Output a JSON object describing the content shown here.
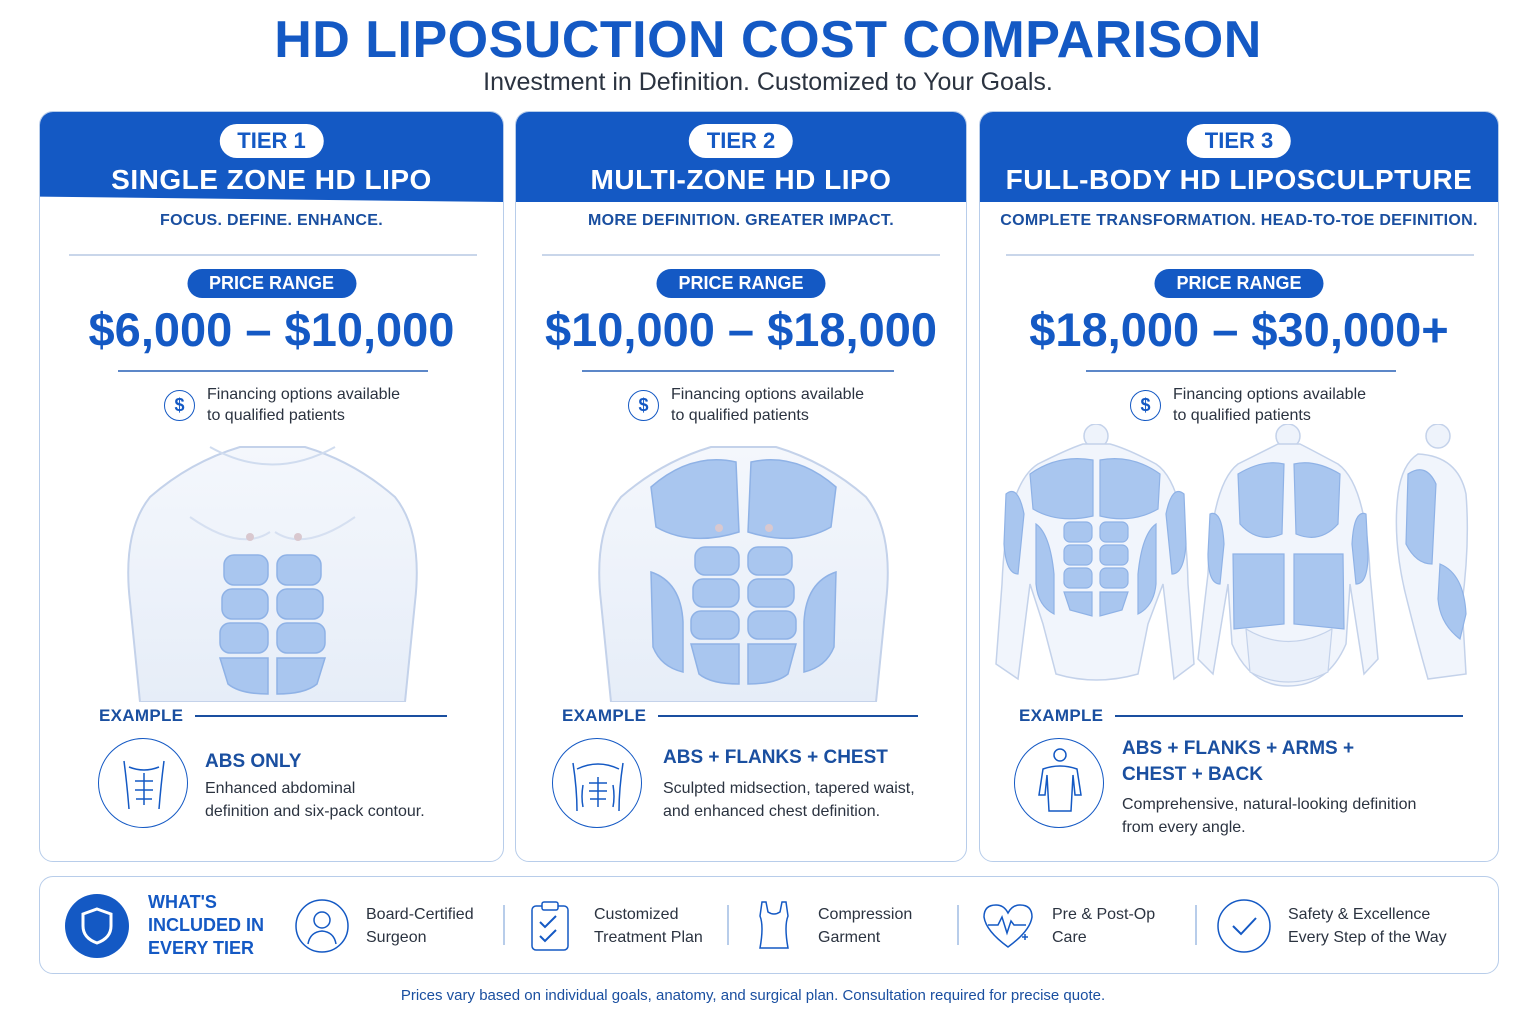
{
  "title": "HD LIPOSUCTION COST COMPARISON",
  "subtitle": "Investment in Definition. Customized to Your Goals.",
  "tiers": [
    {
      "tier": "TIER 1",
      "name": "SINGLE ZONE HD LIPO",
      "tagline": "FOCUS. DEFINE. ENHANCE.",
      "price_label": "PRICE RANGE",
      "price": "$6,000 – $10,000",
      "financing_1": "Financing options available",
      "financing_2": "to qualified patients",
      "example_label": "EXAMPLE",
      "example_title": "ABS ONLY",
      "example_desc_1": "Enhanced abdominal",
      "example_desc_2": "definition and six-pack contour.",
      "figure": "front-torso-abs-highlighted"
    },
    {
      "tier": "TIER 2",
      "name": "MULTI-ZONE HD LIPO",
      "tagline": "MORE DEFINITION. GREATER IMPACT.",
      "price_label": "PRICE RANGE",
      "price": "$10,000 – $18,000",
      "financing_1": "Financing options available",
      "financing_2": "to qualified patients",
      "example_label": "EXAMPLE",
      "example_title": "ABS + FLANKS + CHEST",
      "example_desc_1": "Sculpted midsection, tapered waist,",
      "example_desc_2": "and enhanced chest definition.",
      "figure": "front-torso-abs-flanks-chest-highlighted"
    },
    {
      "tier": "TIER 3",
      "name": "FULL-BODY HD LIPOSCULPTURE",
      "tagline": "COMPLETE TRANSFORMATION. HEAD-TO-TOE DEFINITION.",
      "price_label": "PRICE RANGE",
      "price": "$18,000 – $30,000+",
      "financing_1": "Financing options available",
      "financing_2": "to qualified patients",
      "example_label": "EXAMPLE",
      "example_title_1": "ABS + FLANKS + ARMS +",
      "example_title_2": "CHEST + BACK",
      "example_desc_1": "Comprehensive, natural-looking definition",
      "example_desc_2": "from every angle.",
      "figure": "front-back-side-body-highlighted"
    }
  ],
  "included": {
    "heading_1": "WHAT'S",
    "heading_2": "INCLUDED IN",
    "heading_3": "EVERY TIER",
    "items": [
      {
        "line1": "Board-Certified",
        "line2": "Surgeon",
        "icon": "surgeon-icon"
      },
      {
        "line1": "Customized",
        "line2": "Treatment Plan",
        "icon": "clipboard-check-icon"
      },
      {
        "line1": "Compression",
        "line2": "Garment",
        "icon": "garment-icon"
      },
      {
        "line1": "Pre & Post-Op",
        "line2": "Care",
        "icon": "heart-pulse-icon"
      },
      {
        "line1": "Safety & Excellence",
        "line2": "Every Step of the Way",
        "icon": "check-circle-icon"
      }
    ]
  },
  "footnote": "Prices vary based on individual goals, anatomy, and surgical plan.  Consultation required for precise quote.",
  "colors": {
    "brand_blue": "#1459c4",
    "highlight_blue": "#a9c6ef",
    "border": "#b8cdea"
  }
}
